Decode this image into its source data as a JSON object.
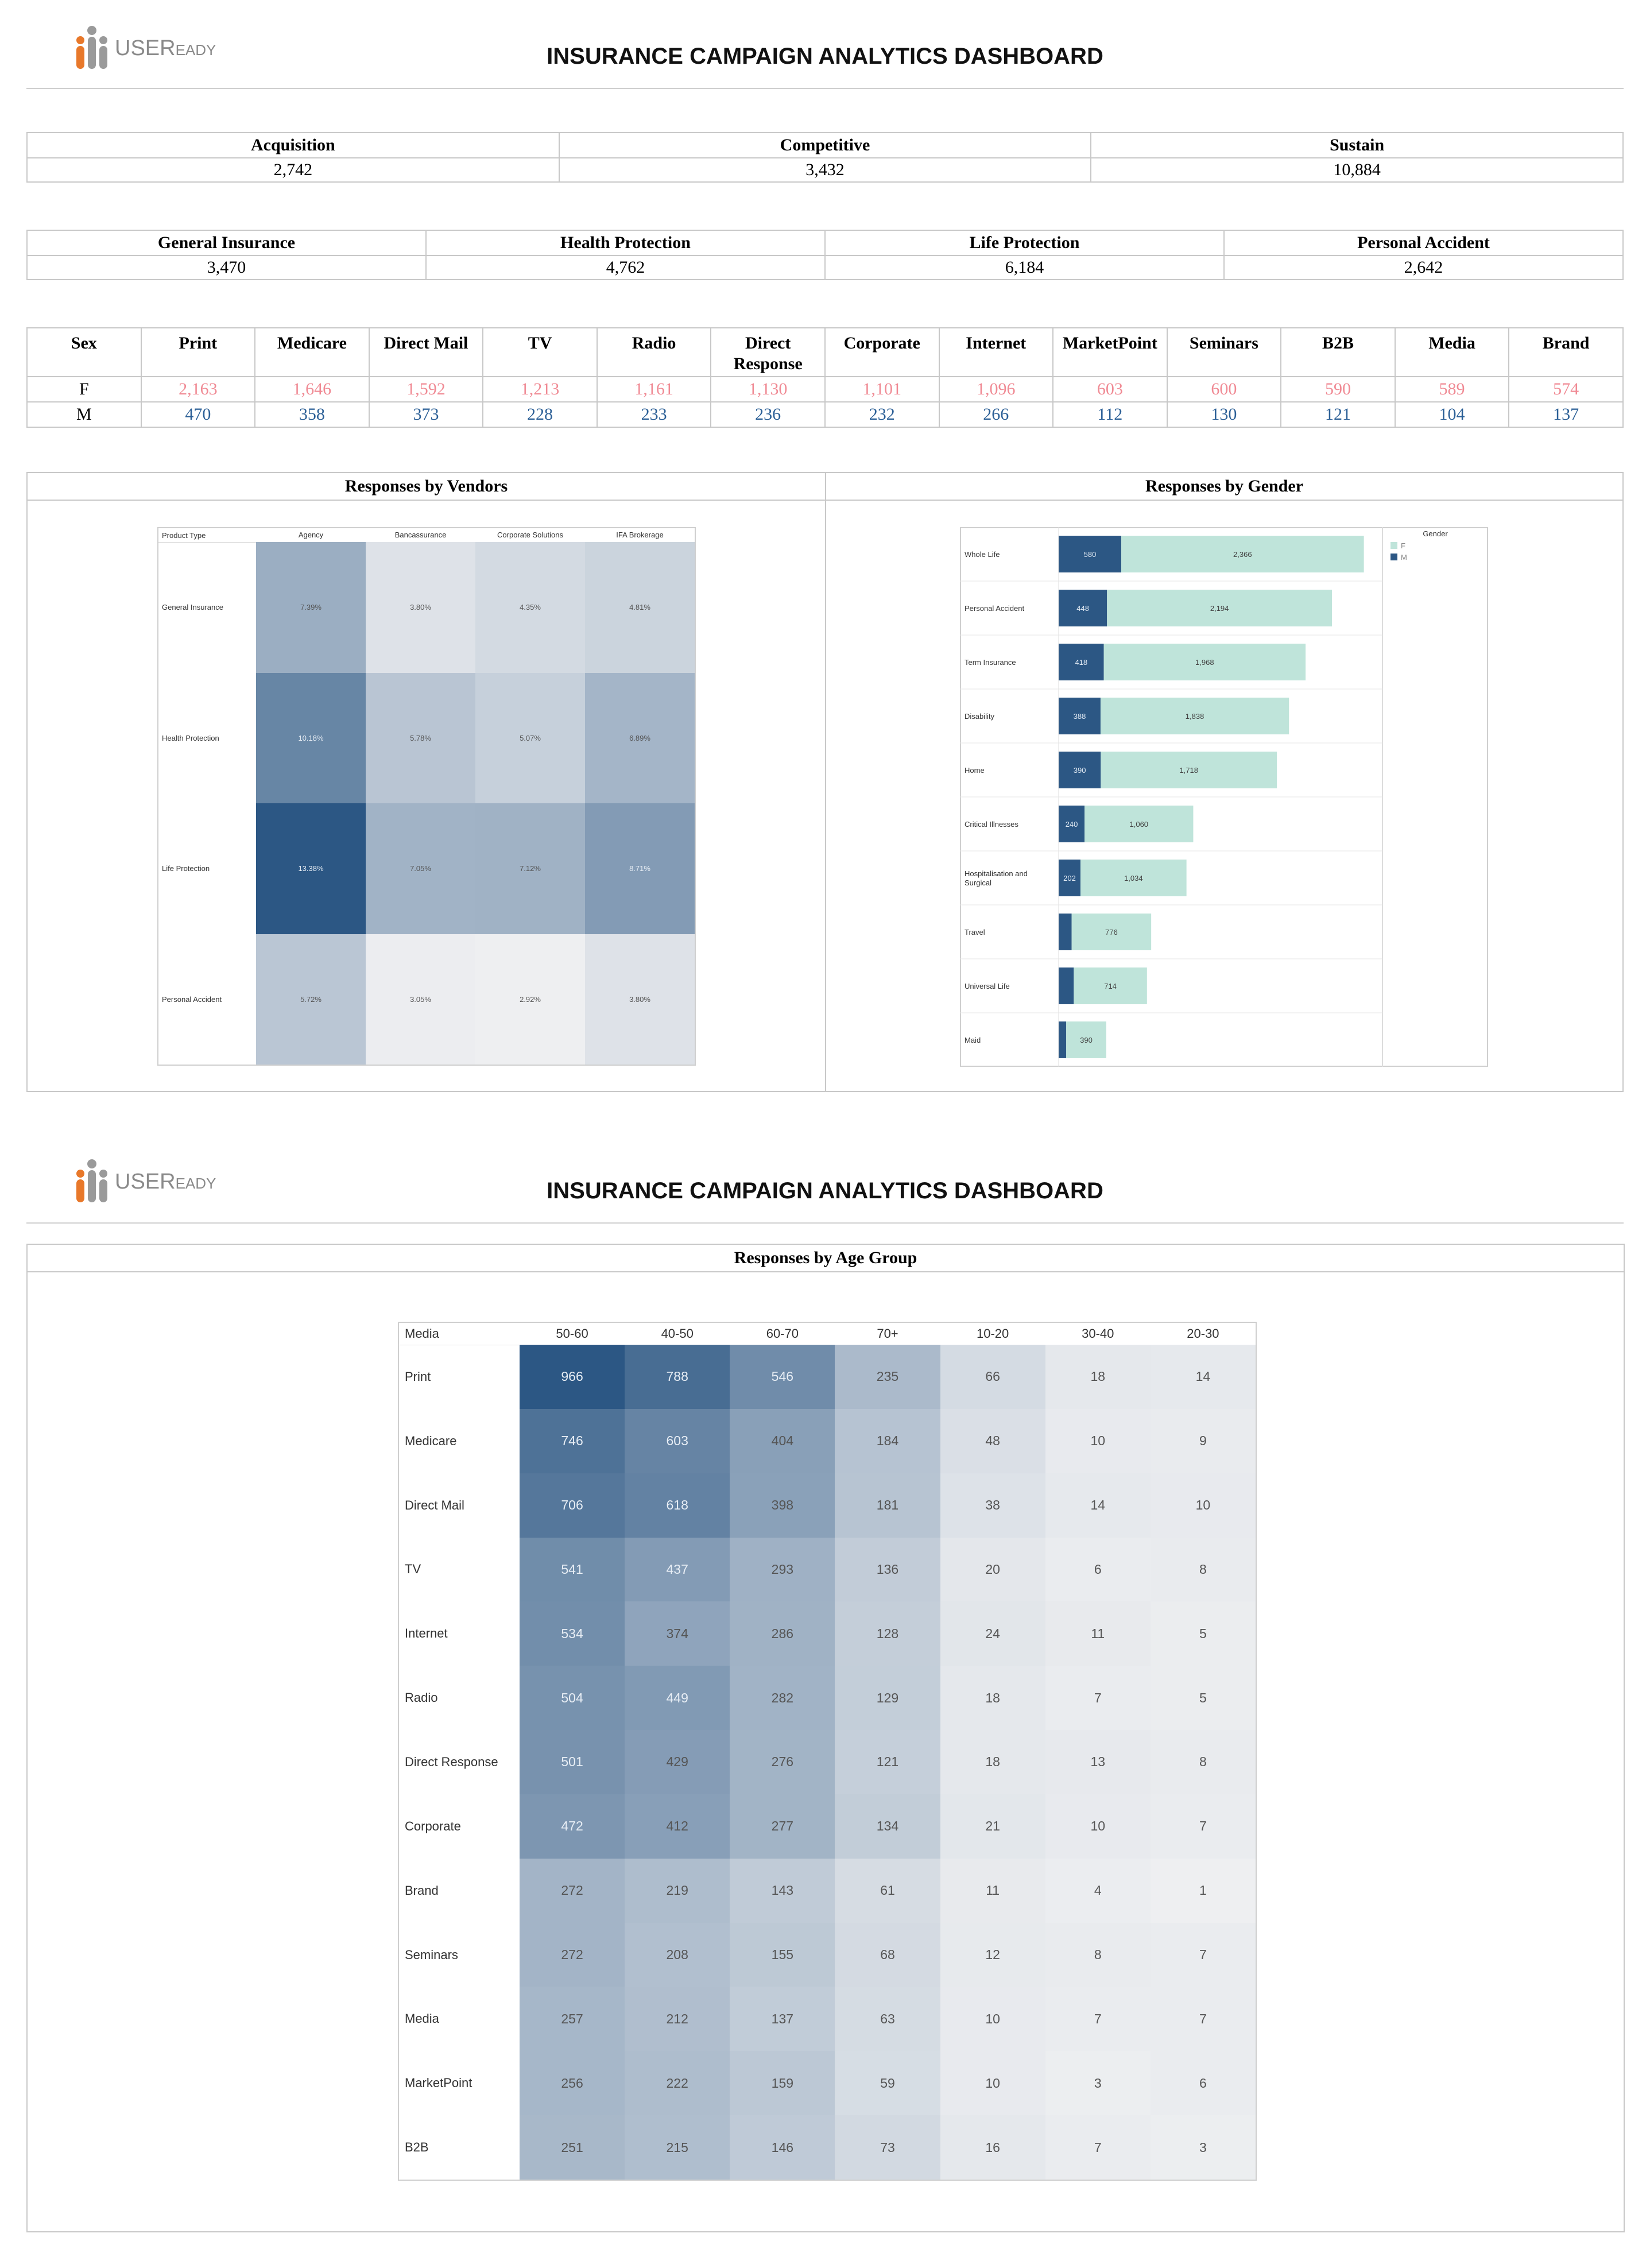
{
  "brand": {
    "logo_text_big": "USER",
    "logo_text_small": "EADY"
  },
  "page1": {
    "title": "INSURANCE CAMPAIGN ANALYTICS DASHBOARD"
  },
  "page2": {
    "title": "INSURANCE CAMPAIGN ANALYTICS DASHBOARD"
  },
  "campaign_kpis": [
    {
      "label": "Acquisition",
      "value": "2,742"
    },
    {
      "label": "Competitive",
      "value": "3,432"
    },
    {
      "label": "Sustain",
      "value": "10,884"
    }
  ],
  "product_kpis": [
    {
      "label": "General Insurance",
      "value": "3,470"
    },
    {
      "label": "Health Protection",
      "value": "4,762"
    },
    {
      "label": "Life Protection",
      "value": "6,184"
    },
    {
      "label": "Personal Accident",
      "value": "2,642"
    }
  ],
  "sex_table": {
    "header": "Sex",
    "columns": [
      "Print",
      "Medicare",
      "Direct Mail",
      "TV",
      "Radio",
      "Direct Response",
      "Corporate",
      "Internet",
      "MarketPoint",
      "Seminars",
      "B2B",
      "Media",
      "Brand"
    ],
    "rows": [
      {
        "label": "F",
        "values": [
          "2,163",
          "1,646",
          "1,592",
          "1,213",
          "1,161",
          "1,130",
          "1,101",
          "1,096",
          "603",
          "600",
          "590",
          "589",
          "574"
        ]
      },
      {
        "label": "M",
        "values": [
          "470",
          "358",
          "373",
          "228",
          "233",
          "236",
          "232",
          "266",
          "112",
          "130",
          "121",
          "104",
          "137"
        ]
      }
    ],
    "colors": {
      "F": "#f08a94",
      "M": "#2b5f96"
    }
  },
  "vendors_panel": {
    "title": "Responses by Vendors"
  },
  "gender_panel": {
    "title": "Responses by Gender"
  },
  "age_panel": {
    "title": "Responses by Age Group"
  },
  "chart_data": [
    {
      "type": "heatmap",
      "title": "Responses by Vendors",
      "row_header": "Product Type",
      "columns": [
        "Agency",
        "Bancassurance",
        "Corporate Solutions",
        "IFA Brokerage"
      ],
      "rows": [
        "General Insurance",
        "Health Protection",
        "Life Protection",
        "Personal Accident"
      ],
      "values": [
        [
          7.39,
          3.8,
          4.35,
          4.81
        ],
        [
          10.18,
          5.78,
          5.07,
          6.89
        ],
        [
          13.38,
          7.05,
          7.12,
          8.71
        ],
        [
          5.72,
          3.05,
          2.92,
          3.8
        ]
      ],
      "labels": [
        [
          "7.39%",
          "3.80%",
          "4.35%",
          "4.81%"
        ],
        [
          "10.18%",
          "5.78%",
          "5.07%",
          "6.89%"
        ],
        [
          "13.38%",
          "7.05%",
          "7.12%",
          "8.71%"
        ],
        [
          "5.72%",
          "3.05%",
          "2.92%",
          "3.80%"
        ]
      ],
      "color_range": [
        "#eeeff1",
        "#2c5784"
      ]
    },
    {
      "type": "bar",
      "orientation": "horizontal",
      "stacked": true,
      "title": "Responses by Gender",
      "categories": [
        "Whole Life",
        "Personal Accident",
        "Term Insurance",
        "Disability",
        "Home",
        "Critical Illnesses",
        "Hospitalisation and Surgical",
        "Travel",
        "Universal Life",
        "Maid"
      ],
      "series": [
        {
          "name": "M",
          "values": [
            580,
            448,
            418,
            388,
            390,
            240,
            202,
            120,
            140,
            70
          ],
          "labels": [
            "580",
            "448",
            "418",
            "388",
            "390",
            "240",
            "202",
            "",
            "",
            ""
          ],
          "color": "#2c5784"
        },
        {
          "name": "F",
          "values": [
            2366,
            2194,
            1968,
            1838,
            1718,
            1060,
            1034,
            776,
            714,
            390
          ],
          "labels": [
            "2,366",
            "2,194",
            "1,968",
            "1,838",
            "1,718",
            "1,060",
            "1,034",
            "776",
            "714",
            "390"
          ],
          "color": "#bfe4da"
        }
      ],
      "legend_title": "Gender",
      "legend": [
        "F",
        "M"
      ],
      "legend_position": "top-right",
      "xlim": [
        0,
        3000
      ]
    },
    {
      "type": "heatmap",
      "title": "Responses by Age Group",
      "row_header": "Media",
      "columns": [
        "50-60",
        "40-50",
        "60-70",
        "70+",
        "10-20",
        "30-40",
        "20-30"
      ],
      "rows": [
        "Print",
        "Medicare",
        "Direct Mail",
        "TV",
        "Internet",
        "Radio",
        "Direct Response",
        "Corporate",
        "Brand",
        "Seminars",
        "Media",
        "MarketPoint",
        "B2B"
      ],
      "values": [
        [
          966,
          788,
          546,
          235,
          66,
          18,
          14
        ],
        [
          746,
          603,
          404,
          184,
          48,
          10,
          9
        ],
        [
          706,
          618,
          398,
          181,
          38,
          14,
          10
        ],
        [
          541,
          437,
          293,
          136,
          20,
          6,
          8
        ],
        [
          534,
          374,
          286,
          128,
          24,
          11,
          5
        ],
        [
          504,
          449,
          282,
          129,
          18,
          7,
          5
        ],
        [
          501,
          429,
          276,
          121,
          18,
          13,
          8
        ],
        [
          472,
          412,
          277,
          134,
          21,
          10,
          7
        ],
        [
          272,
          219,
          143,
          61,
          11,
          4,
          1
        ],
        [
          272,
          208,
          155,
          68,
          12,
          8,
          7
        ],
        [
          257,
          212,
          137,
          63,
          10,
          7,
          7
        ],
        [
          256,
          222,
          159,
          59,
          10,
          3,
          6
        ],
        [
          251,
          215,
          146,
          73,
          16,
          7,
          3
        ]
      ],
      "color_range": [
        "#eeeff1",
        "#2c5784"
      ]
    }
  ]
}
